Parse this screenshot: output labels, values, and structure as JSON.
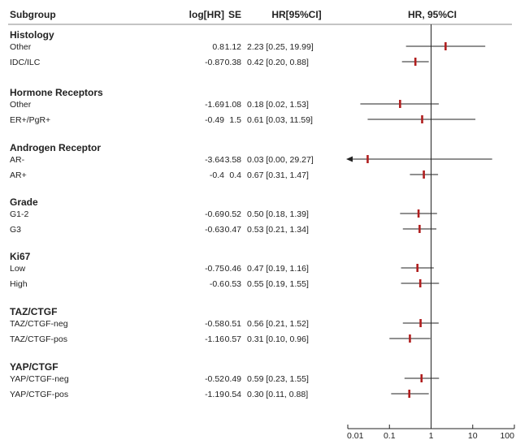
{
  "header": {
    "subgroup": "Subgroup",
    "loghr": "log[HR]",
    "se": "SE",
    "hrci": "HR[95%CI]",
    "plot": "HR, 95%CI"
  },
  "chart_data": {
    "type": "forest",
    "x_scale": "log",
    "xlim": [
      0.01,
      100
    ],
    "x_ticks": [
      "0.01",
      "0.1",
      "1",
      "10",
      "100"
    ],
    "reference_line": 1,
    "marker_color": "#b01e1e",
    "line_color": "#222222",
    "groups": [
      {
        "name": "Histology",
        "rows": [
          {
            "label": "Other",
            "loghr": "0.8",
            "se": "1.12",
            "hr_text": "2.23 [0.25, 19.99]",
            "hr": 2.23,
            "lo": 0.25,
            "hi": 19.99
          },
          {
            "label": "IDC/ILC",
            "loghr": "-0.87",
            "se": "0.38",
            "hr_text": "0.42 [0.20, 0.88]",
            "hr": 0.42,
            "lo": 0.2,
            "hi": 0.88
          }
        ]
      },
      {
        "name": "Hormone Receptors",
        "rows": [
          {
            "label": "Other",
            "loghr": "-1.69",
            "se": "1.08",
            "hr_text": "0.18 [0.02, 1.53]",
            "hr": 0.18,
            "lo": 0.02,
            "hi": 1.53
          },
          {
            "label": "ER+/PgR+",
            "loghr": "-0.49",
            "se": "1.5",
            "hr_text": "0.61 [0.03, 11.59]",
            "hr": 0.61,
            "lo": 0.03,
            "hi": 11.59
          }
        ]
      },
      {
        "name": "Androgen Receptor",
        "rows": [
          {
            "label": "AR-",
            "loghr": "-3.64",
            "se": "3.58",
            "hr_text": "0.03 [0.00, 29.27]",
            "hr": 0.03,
            "lo": 0.0,
            "hi": 29.27,
            "arrow_left": true
          },
          {
            "label": "AR+",
            "loghr": "-0.4",
            "se": "0.4",
            "hr_text": "0.67 [0.31, 1.47]",
            "hr": 0.67,
            "lo": 0.31,
            "hi": 1.47
          }
        ]
      },
      {
        "name": "Grade",
        "rows": [
          {
            "label": "G1-2",
            "loghr": "-0.69",
            "se": "0.52",
            "hr_text": "0.50 [0.18, 1.39]",
            "hr": 0.5,
            "lo": 0.18,
            "hi": 1.39
          },
          {
            "label": "G3",
            "loghr": "-0.63",
            "se": "0.47",
            "hr_text": "0.53 [0.21, 1.34]",
            "hr": 0.53,
            "lo": 0.21,
            "hi": 1.34
          }
        ]
      },
      {
        "name": "Ki67",
        "rows": [
          {
            "label": "Low",
            "loghr": "-0.75",
            "se": "0.46",
            "hr_text": "0.47 [0.19, 1.16]",
            "hr": 0.47,
            "lo": 0.19,
            "hi": 1.16
          },
          {
            "label": "High",
            "loghr": "-0.6",
            "se": "0.53",
            "hr_text": "0.55 [0.19, 1.55]",
            "hr": 0.55,
            "lo": 0.19,
            "hi": 1.55
          }
        ]
      },
      {
        "name": "TAZ/CTGF",
        "rows": [
          {
            "label": "TAZ/CTGF-neg",
            "loghr": "-0.58",
            "se": "0.51",
            "hr_text": "0.56 [0.21, 1.52]",
            "hr": 0.56,
            "lo": 0.21,
            "hi": 1.52
          },
          {
            "label": "TAZ/CTGF-pos",
            "loghr": "-1.16",
            "se": "0.57",
            "hr_text": "0.31 [0.10, 0.96]",
            "hr": 0.31,
            "lo": 0.1,
            "hi": 0.96
          }
        ]
      },
      {
        "name": "YAP/CTGF",
        "rows": [
          {
            "label": "YAP/CTGF-neg",
            "loghr": "-0.52",
            "se": "0.49",
            "hr_text": "0.59 [0.23, 1.55]",
            "hr": 0.59,
            "lo": 0.23,
            "hi": 1.55
          },
          {
            "label": "YAP/CTGF-pos",
            "loghr": "-1.19",
            "se": "0.54",
            "hr_text": "0.30 [0.11, 0.88]",
            "hr": 0.3,
            "lo": 0.11,
            "hi": 0.88
          }
        ]
      }
    ]
  }
}
